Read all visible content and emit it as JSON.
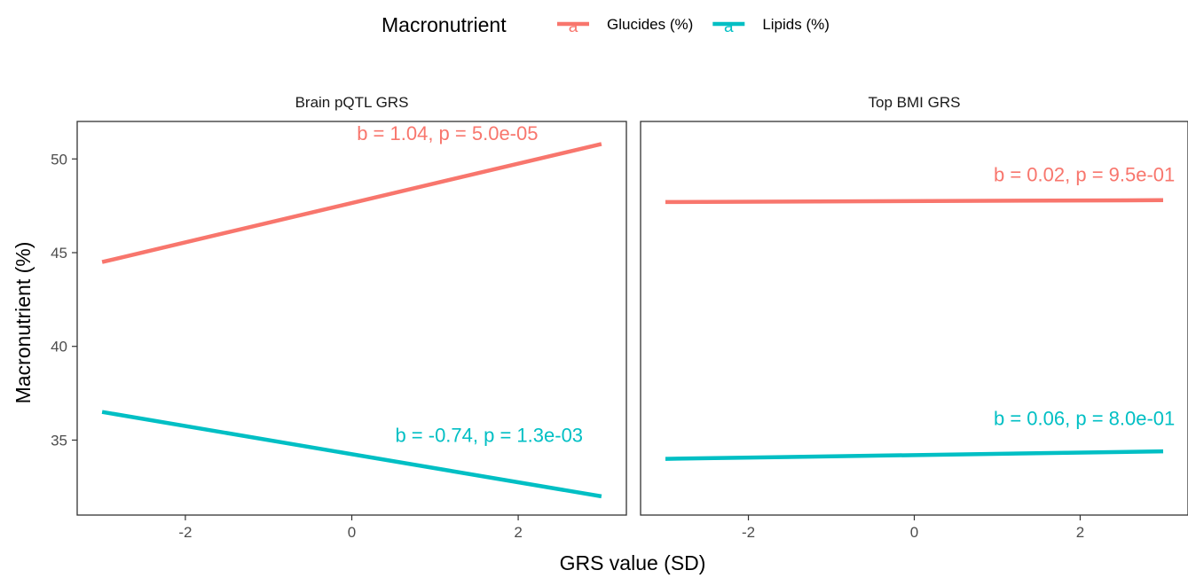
{
  "chart_data": {
    "type": "line",
    "xlabel": "GRS value (SD)",
    "ylabel": "Macronutrient (%)",
    "xlim": [
      -3.3,
      3.3
    ],
    "ylim": [
      31.0,
      52.0
    ],
    "x_ticks": [
      -2,
      0,
      2
    ],
    "x_tick_labels": [
      "-2",
      "0",
      "2"
    ],
    "y_ticks": [
      35,
      40,
      45,
      50
    ],
    "y_tick_labels": [
      "35",
      "40",
      "45",
      "50"
    ],
    "grid": false,
    "legend": {
      "title": "Macronutrient",
      "position": "top",
      "key_glyph": "a",
      "entries": [
        {
          "label": "Glucides (%)",
          "color": "#F8766D"
        },
        {
          "label": "Lipids (%)",
          "color": "#00BFC4"
        }
      ]
    },
    "panels": [
      {
        "title": "Brain pQTL GRS",
        "series": [
          {
            "name": "Glucides (%)",
            "color": "#F8766D",
            "x": [
              -3,
              3
            ],
            "y": [
              44.5,
              50.8
            ],
            "annotation": {
              "text": "b = 1.04, p = 5.0e-05",
              "x": 1.15,
              "y": 51.0
            }
          },
          {
            "name": "Lipids (%)",
            "color": "#00BFC4",
            "x": [
              -3,
              3
            ],
            "y": [
              36.5,
              32.0
            ],
            "annotation": {
              "text": "b = -0.74, p = 1.3e-03",
              "x": 1.65,
              "y": 34.9
            }
          }
        ]
      },
      {
        "title": "Top BMI GRS",
        "series": [
          {
            "name": "Glucides (%)",
            "color": "#F8766D",
            "x": [
              -3,
              3
            ],
            "y": [
              47.7,
              47.8
            ],
            "annotation": {
              "text": "b = 0.02, p = 9.5e-01",
              "x": 2.05,
              "y": 48.8
            }
          },
          {
            "name": "Lipids (%)",
            "color": "#00BFC4",
            "x": [
              -3,
              3
            ],
            "y": [
              34.0,
              34.4
            ],
            "annotation": {
              "text": "b = 0.06, p = 8.0e-01",
              "x": 2.05,
              "y": 35.8
            }
          }
        ]
      }
    ]
  }
}
